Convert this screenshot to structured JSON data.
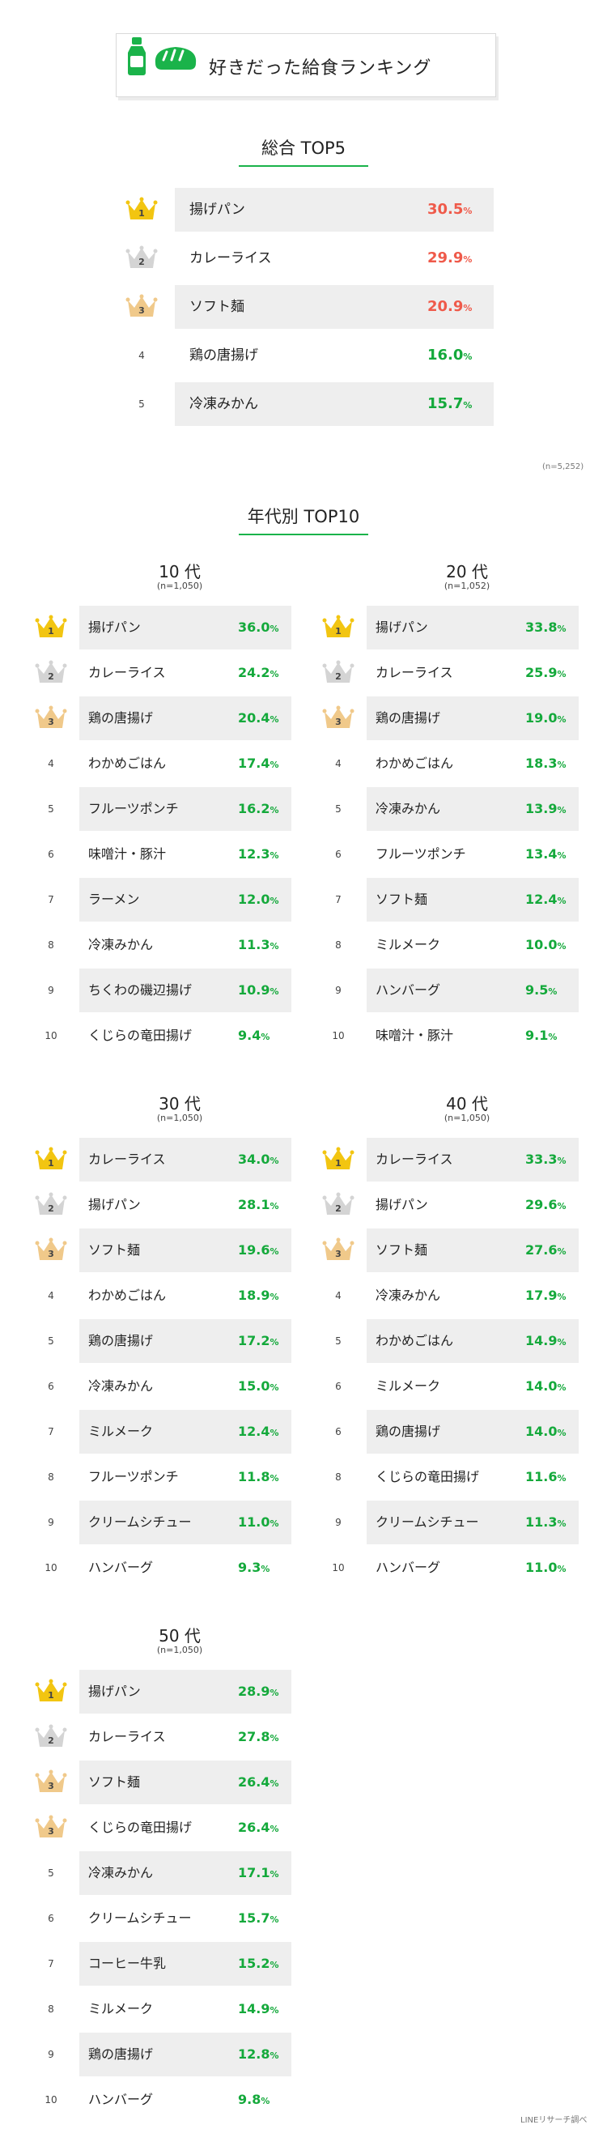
{
  "header": {
    "title": "好きだった給食ランキング"
  },
  "overall": {
    "title": "総合 TOP5",
    "n_note": "(n=5,252)",
    "items": [
      {
        "rank": "1",
        "name": "揚げパン",
        "value": "30.5",
        "unit": "%"
      },
      {
        "rank": "2",
        "name": "カレーライス",
        "value": "29.9",
        "unit": "%"
      },
      {
        "rank": "3",
        "name": "ソフト麺",
        "value": "20.9",
        "unit": "%"
      },
      {
        "rank": "4",
        "name": "鶏の唐揚げ",
        "value": "16.0",
        "unit": "%"
      },
      {
        "rank": "5",
        "name": "冷凍みかん",
        "value": "15.7",
        "unit": "%"
      }
    ]
  },
  "by_age": {
    "title": "年代別 TOP10",
    "groups": [
      {
        "label": "10 代",
        "n": "(n=1,050)",
        "items": [
          {
            "rank": "1",
            "name": "揚げパン",
            "value": "36.0",
            "unit": "%"
          },
          {
            "rank": "2",
            "name": "カレーライス",
            "value": "24.2",
            "unit": "%"
          },
          {
            "rank": "3",
            "name": "鶏の唐揚げ",
            "value": "20.4",
            "unit": "%"
          },
          {
            "rank": "4",
            "name": "わかめごはん",
            "value": "17.4",
            "unit": "%"
          },
          {
            "rank": "5",
            "name": "フルーツポンチ",
            "value": "16.2",
            "unit": "%"
          },
          {
            "rank": "6",
            "name": "味噌汁・豚汁",
            "value": "12.3",
            "unit": "%"
          },
          {
            "rank": "7",
            "name": "ラーメン",
            "value": "12.0",
            "unit": "%"
          },
          {
            "rank": "8",
            "name": "冷凍みかん",
            "value": "11.3",
            "unit": "%"
          },
          {
            "rank": "9",
            "name": "ちくわの磯辺揚げ",
            "value": "10.9",
            "unit": "%"
          },
          {
            "rank": "10",
            "name": "くじらの竜田揚げ",
            "value": "9.4",
            "unit": "%"
          }
        ]
      },
      {
        "label": "20 代",
        "n": "(n=1,052)",
        "items": [
          {
            "rank": "1",
            "name": "揚げパン",
            "value": "33.8",
            "unit": "%"
          },
          {
            "rank": "2",
            "name": "カレーライス",
            "value": "25.9",
            "unit": "%"
          },
          {
            "rank": "3",
            "name": "鶏の唐揚げ",
            "value": "19.0",
            "unit": "%"
          },
          {
            "rank": "4",
            "name": "わかめごはん",
            "value": "18.3",
            "unit": "%"
          },
          {
            "rank": "5",
            "name": "冷凍みかん",
            "value": "13.9",
            "unit": "%"
          },
          {
            "rank": "6",
            "name": "フルーツポンチ",
            "value": "13.4",
            "unit": "%"
          },
          {
            "rank": "7",
            "name": "ソフト麺",
            "value": "12.4",
            "unit": "%"
          },
          {
            "rank": "8",
            "name": "ミルメーク",
            "value": "10.0",
            "unit": "%"
          },
          {
            "rank": "9",
            "name": "ハンバーグ",
            "value": "9.5",
            "unit": "%"
          },
          {
            "rank": "10",
            "name": "味噌汁・豚汁",
            "value": "9.1",
            "unit": "%"
          }
        ]
      },
      {
        "label": "30 代",
        "n": "(n=1,050)",
        "items": [
          {
            "rank": "1",
            "name": "カレーライス",
            "value": "34.0",
            "unit": "%"
          },
          {
            "rank": "2",
            "name": "揚げパン",
            "value": "28.1",
            "unit": "%"
          },
          {
            "rank": "3",
            "name": "ソフト麺",
            "value": "19.6",
            "unit": "%"
          },
          {
            "rank": "4",
            "name": "わかめごはん",
            "value": "18.9",
            "unit": "%"
          },
          {
            "rank": "5",
            "name": "鶏の唐揚げ",
            "value": "17.2",
            "unit": "%"
          },
          {
            "rank": "6",
            "name": "冷凍みかん",
            "value": "15.0",
            "unit": "%"
          },
          {
            "rank": "7",
            "name": "ミルメーク",
            "value": "12.4",
            "unit": "%"
          },
          {
            "rank": "8",
            "name": "フルーツポンチ",
            "value": "11.8",
            "unit": "%"
          },
          {
            "rank": "9",
            "name": "クリームシチュー",
            "value": "11.0",
            "unit": "%"
          },
          {
            "rank": "10",
            "name": "ハンバーグ",
            "value": "9.3",
            "unit": "%"
          }
        ]
      },
      {
        "label": "40 代",
        "n": "(n=1,050)",
        "items": [
          {
            "rank": "1",
            "name": "カレーライス",
            "value": "33.3",
            "unit": "%"
          },
          {
            "rank": "2",
            "name": "揚げパン",
            "value": "29.6",
            "unit": "%"
          },
          {
            "rank": "3",
            "name": "ソフト麺",
            "value": "27.6",
            "unit": "%"
          },
          {
            "rank": "4",
            "name": "冷凍みかん",
            "value": "17.9",
            "unit": "%"
          },
          {
            "rank": "5",
            "name": "わかめごはん",
            "value": "14.9",
            "unit": "%"
          },
          {
            "rank": "6",
            "name": "ミルメーク",
            "value": "14.0",
            "unit": "%"
          },
          {
            "rank": "6",
            "name": "鶏の唐揚げ",
            "value": "14.0",
            "unit": "%"
          },
          {
            "rank": "8",
            "name": "くじらの竜田揚げ",
            "value": "11.6",
            "unit": "%"
          },
          {
            "rank": "9",
            "name": "クリームシチュー",
            "value": "11.3",
            "unit": "%"
          },
          {
            "rank": "10",
            "name": "ハンバーグ",
            "value": "11.0",
            "unit": "%"
          }
        ]
      },
      {
        "label": "50 代",
        "n": "(n=1,050)",
        "items": [
          {
            "rank": "1",
            "name": "揚げパン",
            "value": "28.9",
            "unit": "%"
          },
          {
            "rank": "2",
            "name": "カレーライス",
            "value": "27.8",
            "unit": "%"
          },
          {
            "rank": "3",
            "name": "ソフト麺",
            "value": "26.4",
            "unit": "%"
          },
          {
            "rank": "3",
            "name": "くじらの竜田揚げ",
            "value": "26.4",
            "unit": "%"
          },
          {
            "rank": "5",
            "name": "冷凍みかん",
            "value": "17.1",
            "unit": "%"
          },
          {
            "rank": "6",
            "name": "クリームシチュー",
            "value": "15.7",
            "unit": "%"
          },
          {
            "rank": "7",
            "name": "コーヒー牛乳",
            "value": "15.2",
            "unit": "%"
          },
          {
            "rank": "8",
            "name": "ミルメーク",
            "value": "14.9",
            "unit": "%"
          },
          {
            "rank": "9",
            "name": "鶏の唐揚げ",
            "value": "12.8",
            "unit": "%"
          },
          {
            "rank": "10",
            "name": "ハンバーグ",
            "value": "9.8",
            "unit": "%"
          }
        ]
      }
    ]
  },
  "footer": {
    "source": "LINEリサーチ調べ"
  },
  "colors": {
    "accent_green": "#1ab34a",
    "value_green": "#14a93b",
    "value_red": "#ef5a4a",
    "row_shade": "#eeeeee",
    "gold": "#f2c511",
    "silver": "#d4d4d4",
    "bronze": "#f0c98a"
  },
  "chart_data": [
    {
      "type": "table",
      "title": "総合 TOP5",
      "categories": [
        "揚げパン",
        "カレーライス",
        "ソフト麺",
        "鶏の唐揚げ",
        "冷凍みかん"
      ],
      "values": [
        30.5,
        29.9,
        20.9,
        16.0,
        15.7
      ]
    },
    {
      "type": "table",
      "title": "10 代",
      "categories": [
        "揚げパン",
        "カレーライス",
        "鶏の唐揚げ",
        "わかめごはん",
        "フルーツポンチ",
        "味噌汁・豚汁",
        "ラーメン",
        "冷凍みかん",
        "ちくわの磯辺揚げ",
        "くじらの竜田揚げ"
      ],
      "values": [
        36.0,
        24.2,
        20.4,
        17.4,
        16.2,
        12.3,
        12.0,
        11.3,
        10.9,
        9.4
      ]
    },
    {
      "type": "table",
      "title": "20 代",
      "categories": [
        "揚げパン",
        "カレーライス",
        "鶏の唐揚げ",
        "わかめごはん",
        "冷凍みかん",
        "フルーツポンチ",
        "ソフト麺",
        "ミルメーク",
        "ハンバーグ",
        "味噌汁・豚汁"
      ],
      "values": [
        33.8,
        25.9,
        19.0,
        18.3,
        13.9,
        13.4,
        12.4,
        10.0,
        9.5,
        9.1
      ]
    },
    {
      "type": "table",
      "title": "30 代",
      "categories": [
        "カレーライス",
        "揚げパン",
        "ソフト麺",
        "わかめごはん",
        "鶏の唐揚げ",
        "冷凍みかん",
        "ミルメーク",
        "フルーツポンチ",
        "クリームシチュー",
        "ハンバーグ"
      ],
      "values": [
        34.0,
        28.1,
        19.6,
        18.9,
        17.2,
        15.0,
        12.4,
        11.8,
        11.0,
        9.3
      ]
    },
    {
      "type": "table",
      "title": "40 代",
      "categories": [
        "カレーライス",
        "揚げパン",
        "ソフト麺",
        "冷凍みかん",
        "わかめごはん",
        "ミルメーク",
        "鶏の唐揚げ",
        "くじらの竜田揚げ",
        "クリームシチュー",
        "ハンバーグ"
      ],
      "values": [
        33.3,
        29.6,
        27.6,
        17.9,
        14.9,
        14.0,
        14.0,
        11.6,
        11.3,
        11.0
      ]
    },
    {
      "type": "table",
      "title": "50 代",
      "categories": [
        "揚げパン",
        "カレーライス",
        "ソフト麺",
        "くじらの竜田揚げ",
        "冷凍みかん",
        "クリームシチュー",
        "コーヒー牛乳",
        "ミルメーク",
        "鶏の唐揚げ",
        "ハンバーグ"
      ],
      "values": [
        28.9,
        27.8,
        26.4,
        26.4,
        17.1,
        15.7,
        15.2,
        14.9,
        12.8,
        9.8
      ]
    }
  ]
}
